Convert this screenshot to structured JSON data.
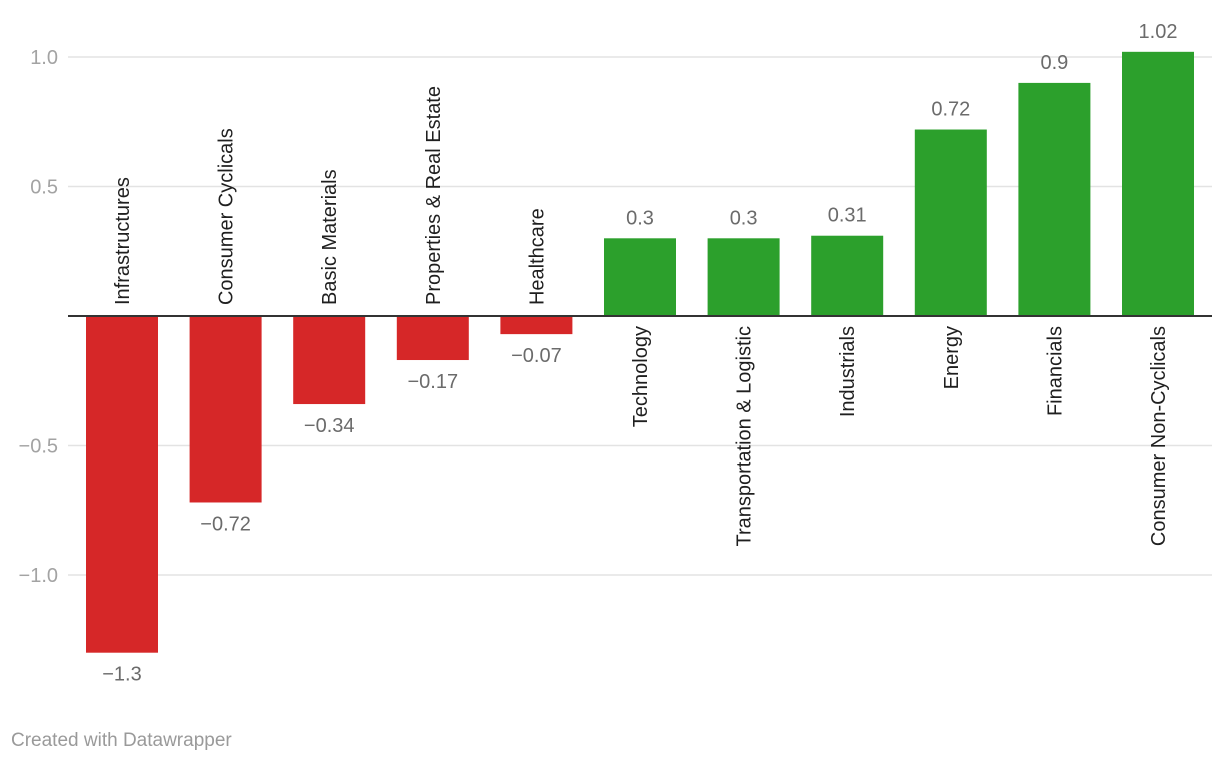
{
  "chart_data": {
    "type": "bar",
    "categories": [
      "Infrastructures",
      "Consumer Cyclicals",
      "Basic Materials",
      "Properties & Real Estate",
      "Healthcare",
      "Technology",
      "Transportation & Logistic",
      "Industrials",
      "Energy",
      "Financials",
      "Consumer Non-Cyclicals"
    ],
    "values": [
      -1.3,
      -0.72,
      -0.34,
      -0.17,
      -0.07,
      0.3,
      0.3,
      0.31,
      0.72,
      0.9,
      1.02
    ],
    "value_labels": [
      "−1.3",
      "−0.72",
      "−0.34",
      "−0.17",
      "−0.07",
      "0.3",
      "0.3",
      "0.31",
      "0.72",
      "0.9",
      "1.02"
    ],
    "yticks": [
      1.0,
      0.5,
      -0.5,
      -1.0
    ],
    "ytick_labels": [
      "1.0",
      "0.5",
      "−0.5",
      "−1.0"
    ],
    "ylim": [
      -1.3,
      1.02
    ],
    "colors": {
      "positive": "#2ca02c",
      "negative": "#d62728",
      "grid": "#e3e3e3",
      "baseline": "#333333"
    },
    "title": "",
    "xlabel": "",
    "ylabel": "",
    "grid": true,
    "legend": "none"
  },
  "footer": {
    "credit": "Created with Datawrapper"
  }
}
